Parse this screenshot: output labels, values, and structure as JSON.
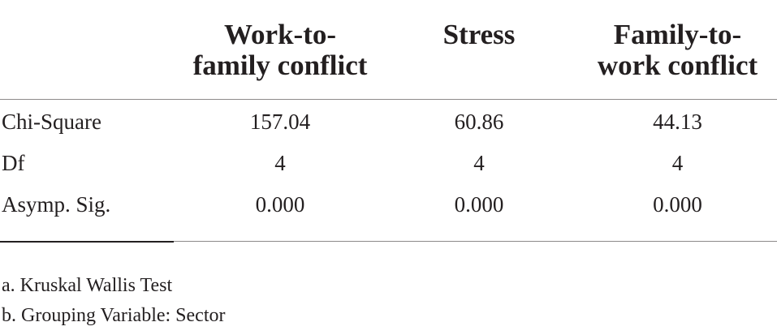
{
  "table": {
    "headers": [
      {
        "line1": "Work-to-",
        "line2": "family conflict"
      },
      {
        "line1": "Stress",
        "line2": ""
      },
      {
        "line1": "Family-to-",
        "line2": "work conflict"
      }
    ],
    "rows": [
      {
        "label": "Chi-Square",
        "values": [
          "157.04",
          "60.86",
          "44.13"
        ]
      },
      {
        "label": "Df",
        "values": [
          "4",
          "4",
          "4"
        ]
      },
      {
        "label": "Asymp. Sig.",
        "values": [
          "0.000",
          "0.000",
          "0.000"
        ]
      }
    ],
    "footnotes": [
      "a. Kruskal Wallis Test",
      "b. Grouping Variable: Sector"
    ]
  }
}
